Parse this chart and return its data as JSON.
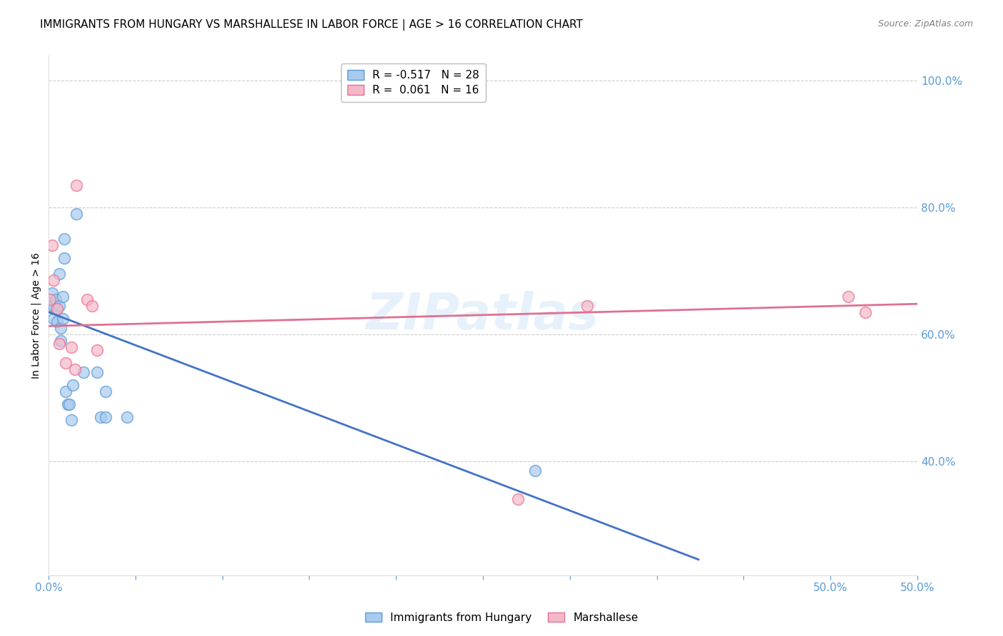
{
  "title": "IMMIGRANTS FROM HUNGARY VS MARSHALLESE IN LABOR FORCE | AGE > 16 CORRELATION CHART",
  "source": "Source: ZipAtlas.com",
  "ylabel": "In Labor Force | Age > 16",
  "xlim": [
    0.0,
    0.5
  ],
  "ylim": [
    0.22,
    1.04
  ],
  "yticks": [
    0.4,
    0.6,
    0.8,
    1.0
  ],
  "ytick_labels": [
    "40.0%",
    "60.0%",
    "80.0%",
    "100.0%"
  ],
  "xtick_positions": [
    0.0,
    0.05,
    0.1,
    0.15,
    0.2,
    0.25,
    0.3,
    0.35,
    0.4,
    0.45,
    0.5
  ],
  "xtick_labels_shown": {
    "0.0": "0.0%",
    "0.5": "50.0%"
  },
  "grid_color": "#cccccc",
  "background_color": "#ffffff",
  "watermark": "ZIPatlas",
  "hungary_color": "#a8caee",
  "marshallese_color": "#f4b8c8",
  "hungary_edge_color": "#5b9bd5",
  "marshallese_edge_color": "#e87090",
  "hungary_line_color": "#4472c4",
  "marshallese_line_color": "#e07090",
  "hungary_R": -0.517,
  "hungary_N": 28,
  "marshallese_R": 0.061,
  "marshallese_N": 16,
  "hungary_scatter_x": [
    0.001,
    0.002,
    0.003,
    0.003,
    0.004,
    0.005,
    0.005,
    0.006,
    0.006,
    0.007,
    0.007,
    0.008,
    0.008,
    0.009,
    0.009,
    0.01,
    0.011,
    0.012,
    0.013,
    0.014,
    0.016,
    0.02,
    0.028,
    0.03,
    0.033,
    0.033,
    0.045,
    0.28
  ],
  "hungary_scatter_y": [
    0.645,
    0.665,
    0.645,
    0.625,
    0.655,
    0.64,
    0.62,
    0.695,
    0.645,
    0.61,
    0.59,
    0.66,
    0.625,
    0.72,
    0.75,
    0.51,
    0.49,
    0.49,
    0.465,
    0.52,
    0.79,
    0.54,
    0.54,
    0.47,
    0.51,
    0.47,
    0.47,
    0.385
  ],
  "marshallese_scatter_x": [
    0.001,
    0.002,
    0.003,
    0.005,
    0.006,
    0.01,
    0.013,
    0.015,
    0.016,
    0.022,
    0.025,
    0.028,
    0.27,
    0.31,
    0.46,
    0.47
  ],
  "marshallese_scatter_y": [
    0.655,
    0.74,
    0.685,
    0.64,
    0.585,
    0.555,
    0.58,
    0.545,
    0.835,
    0.655,
    0.645,
    0.575,
    0.34,
    0.645,
    0.66,
    0.635
  ],
  "hungary_trend_x": [
    0.0,
    0.374
  ],
  "hungary_trend_y": [
    0.635,
    0.245
  ],
  "marshallese_trend_x": [
    0.0,
    0.5
  ],
  "marshallese_trend_y": [
    0.613,
    0.648
  ],
  "title_fontsize": 11,
  "axis_label_fontsize": 10,
  "tick_fontsize": 11,
  "legend_fontsize": 11,
  "right_ytick_color": "#5b9bd5",
  "right_ytick_fontsize": 11
}
